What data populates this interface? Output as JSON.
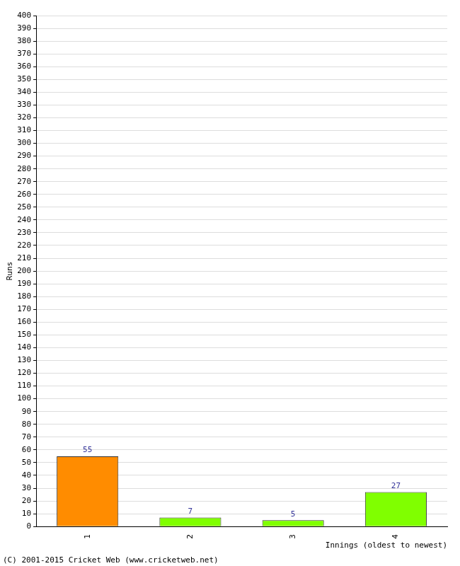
{
  "chart_data": {
    "type": "bar",
    "categories": [
      "1",
      "2",
      "3",
      "4"
    ],
    "values": [
      55,
      7,
      5,
      27
    ],
    "colors": [
      "#ff8c00",
      "#80ff00",
      "#80ff00",
      "#80ff00"
    ],
    "x_label": "Innings (oldest to newest)",
    "y_label": "Runs",
    "annotation": "(C) 2001-2015 Cricket Web (www.cricketweb.net)",
    "ylim": [
      0,
      400
    ],
    "yticks": [
      0,
      10,
      20,
      30,
      40,
      50,
      60,
      70,
      80,
      90,
      100,
      110,
      120,
      130,
      140,
      150,
      160,
      170,
      180,
      190,
      200,
      210,
      220,
      230,
      240,
      250,
      260,
      270,
      280,
      290,
      300,
      310,
      320,
      330,
      340,
      350,
      360,
      370,
      380,
      390,
      400
    ],
    "grid": true,
    "data_labels": true
  }
}
